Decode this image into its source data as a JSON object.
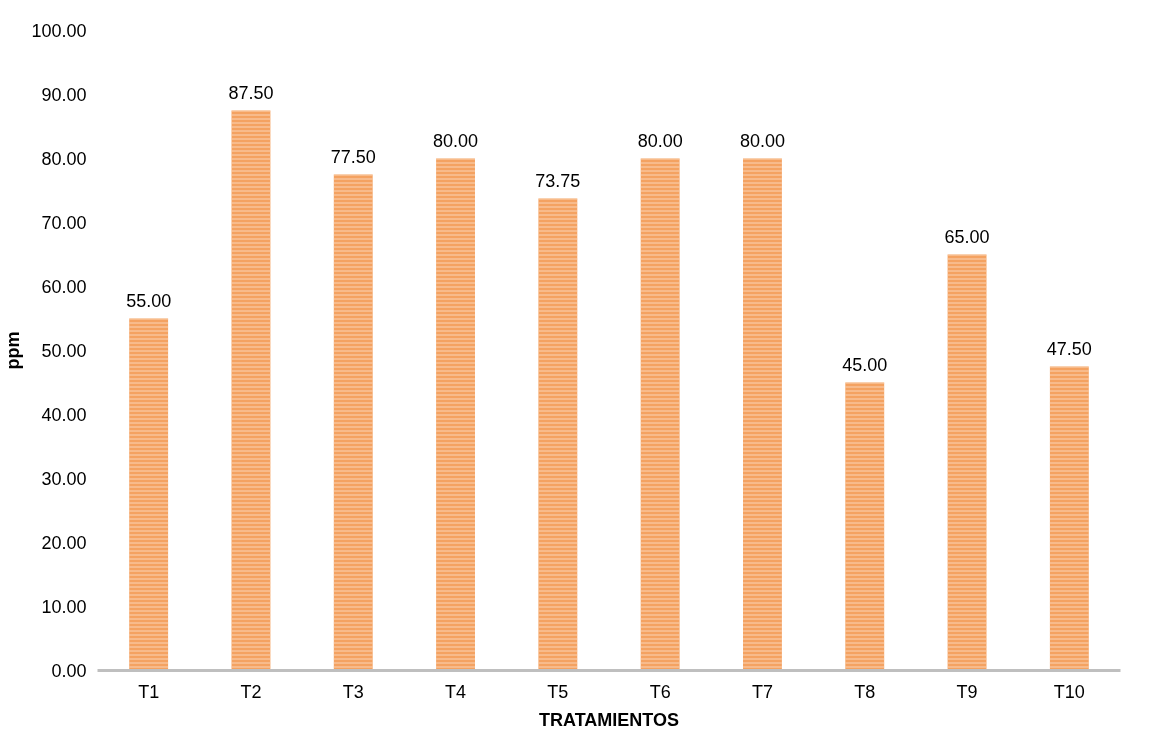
{
  "chart_data": {
    "type": "bar",
    "xlabel": "TRATAMIENTOS",
    "ylabel": "ppm",
    "categories": [
      "T1",
      "T2",
      "T3",
      "T4",
      "T5",
      "T6",
      "T7",
      "T8",
      "T9",
      "T10"
    ],
    "values": [
      55.0,
      87.5,
      77.5,
      80.0,
      73.75,
      80.0,
      80.0,
      45.0,
      65.0,
      47.5
    ],
    "value_labels": [
      "55.00",
      "87.50",
      "77.50",
      "80.00",
      "73.75",
      "80.00",
      "80.00",
      "45.00",
      "65.00",
      "47.50"
    ],
    "color": "#f4a261",
    "ylim": [
      0,
      100
    ],
    "yticks": [
      {
        "value": 0,
        "label": "0.00"
      },
      {
        "value": 10,
        "label": "10.00"
      },
      {
        "value": 20,
        "label": "20.00"
      },
      {
        "value": 30,
        "label": "30.00"
      },
      {
        "value": 40,
        "label": "40.00"
      },
      {
        "value": 50,
        "label": "50.00"
      },
      {
        "value": 60,
        "label": "60.00"
      },
      {
        "value": 70,
        "label": "70.00"
      },
      {
        "value": 80,
        "label": "80.00"
      },
      {
        "value": 90,
        "label": "90.00"
      },
      {
        "value": 100,
        "label": "100.00"
      }
    ],
    "grid": false
  }
}
